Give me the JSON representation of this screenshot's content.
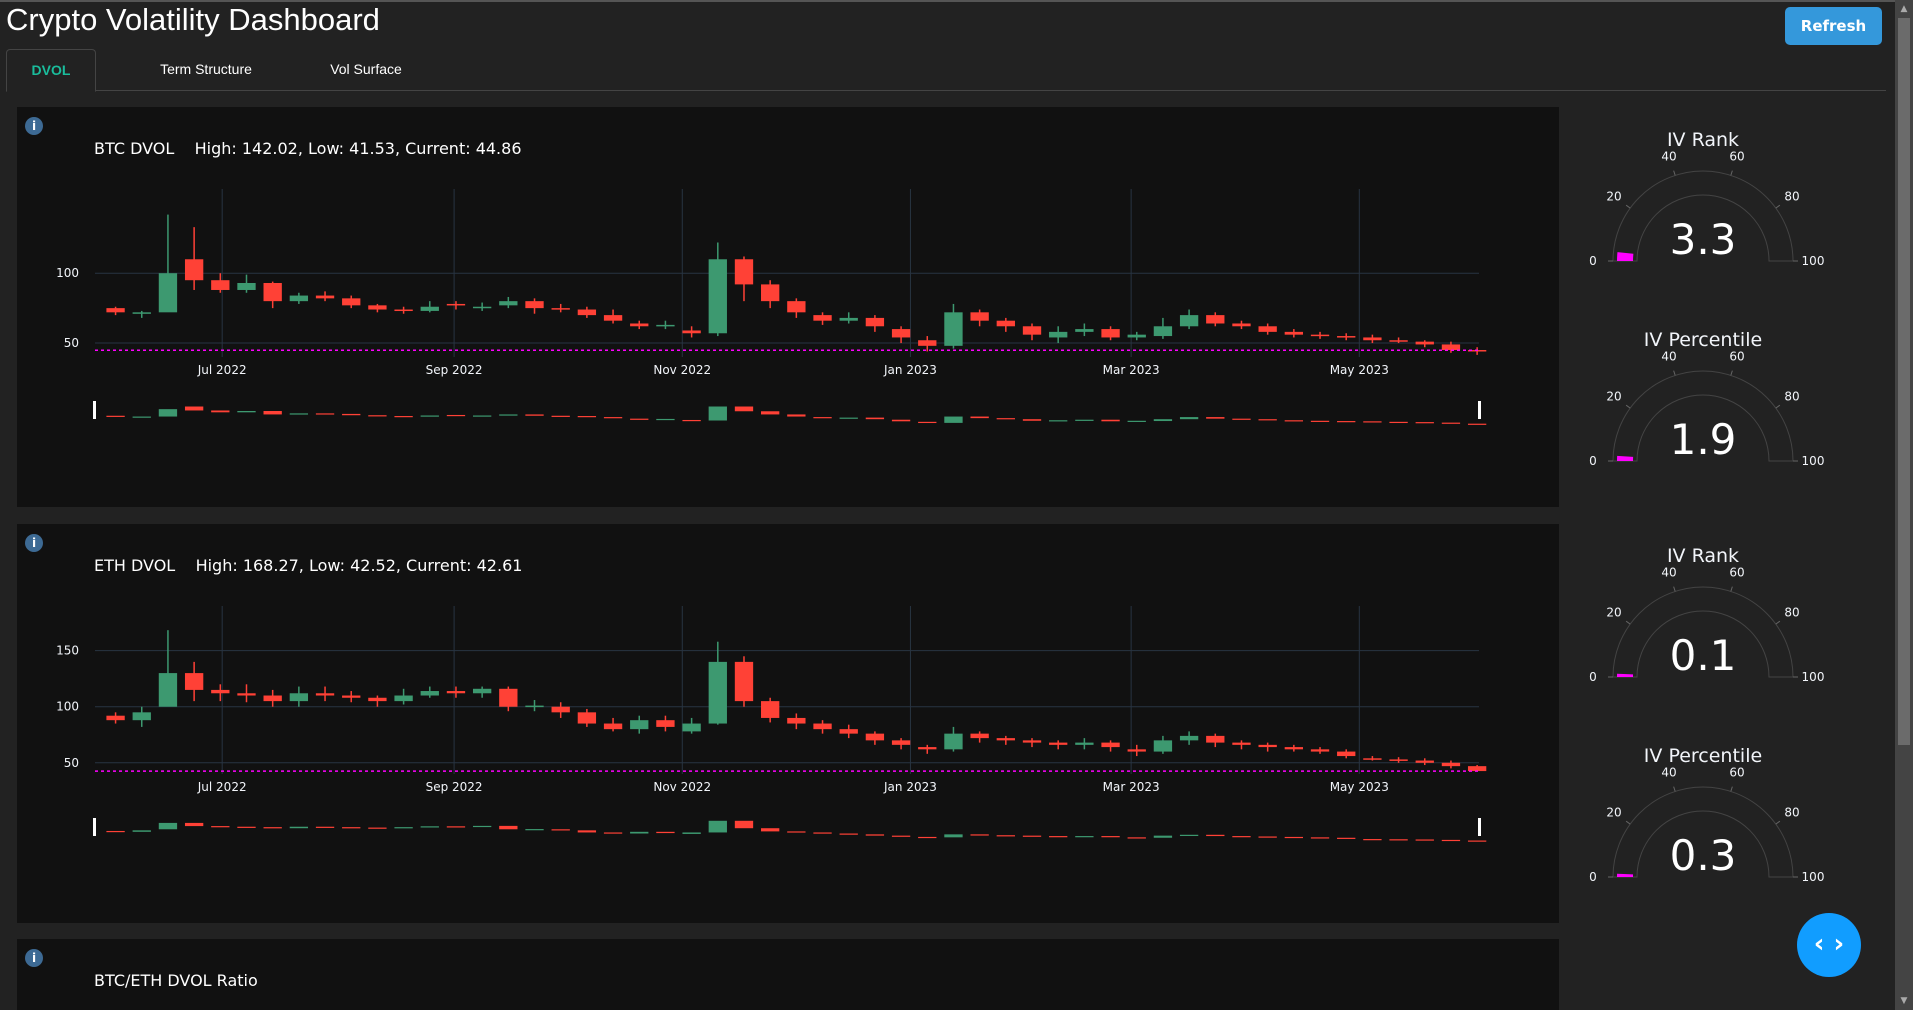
{
  "header": {
    "title": "Crypto Volatility Dashboard",
    "refresh_label": "Refresh"
  },
  "tabs": [
    {
      "label": "DVOL",
      "active": true
    },
    {
      "label": "Term Structure",
      "active": false
    },
    {
      "label": "Vol Surface",
      "active": false
    }
  ],
  "colors": {
    "increasing": "#3D9970",
    "decreasing": "#FF4136",
    "current_line": "#FF00FF",
    "gauge_bar": "#FF00FF",
    "accent": "#1abc9c",
    "button": "#3498db",
    "fab": "#119dff"
  },
  "icons": {
    "info": "info-icon",
    "fab": "code-brackets-icon"
  },
  "panels": [
    {
      "title": "BTC DVOL",
      "stats": "High: 142.02, Low: 41.53, Current: 44.86"
    },
    {
      "title": "ETH DVOL",
      "stats": "High: 168.27, Low: 42.52, Current: 42.61"
    },
    {
      "title": "BTC/ETH DVOL Ratio",
      "stats": ""
    }
  ],
  "gauges": [
    {
      "title": "IV Rank",
      "value": 3.3,
      "display": "3.3",
      "ticks": [
        "0",
        "20",
        "40",
        "60",
        "80",
        "100"
      ]
    },
    {
      "title": "IV Percentile",
      "value": 1.9,
      "display": "1.9",
      "ticks": [
        "0",
        "20",
        "40",
        "60",
        "80",
        "100"
      ]
    },
    {
      "title": "IV Rank",
      "value": 0.1,
      "display": "0.1",
      "ticks": [
        "0",
        "20",
        "40",
        "60",
        "80",
        "100"
      ]
    },
    {
      "title": "IV Percentile",
      "value": 0.3,
      "display": "0.3",
      "ticks": [
        "0",
        "20",
        "40",
        "60",
        "80",
        "100"
      ]
    }
  ],
  "chart_data": [
    {
      "type": "candlestick",
      "name": "BTC DVOL",
      "xrange": [
        "2022-05-28",
        "2023-06-02"
      ],
      "ylim": [
        40,
        146
      ],
      "yticks": [
        50,
        100
      ],
      "xticks": [
        [
          "2022-07-01",
          "Jul 2022"
        ],
        [
          "2022-09-01",
          "Sep 2022"
        ],
        [
          "2022-11-01",
          "Nov 2022"
        ],
        [
          "2023-01-01",
          "Jan 2023"
        ],
        [
          "2023-03-01",
          "Mar 2023"
        ],
        [
          "2023-05-01",
          "May 2023"
        ]
      ],
      "current": 44.86,
      "grid": true,
      "rangeslider": true,
      "candles_ohlc": [
        [
          "2022-05-30",
          75,
          76,
          70,
          72
        ],
        [
          "2022-06-06",
          72,
          73,
          68,
          72
        ],
        [
          "2022-06-13",
          72,
          142,
          88,
          100
        ],
        [
          "2022-06-20",
          110,
          133,
          88,
          95
        ],
        [
          "2022-06-27",
          95,
          100,
          86,
          88
        ],
        [
          "2022-07-04",
          88,
          99,
          86,
          93
        ],
        [
          "2022-07-11",
          93,
          94,
          75,
          80
        ],
        [
          "2022-07-18",
          80,
          86,
          78,
          84
        ],
        [
          "2022-07-25",
          84,
          87,
          80,
          82
        ],
        [
          "2022-08-01",
          82,
          84,
          75,
          77
        ],
        [
          "2022-08-08",
          77,
          78,
          72,
          74
        ],
        [
          "2022-08-15",
          74,
          76,
          71,
          73
        ],
        [
          "2022-08-22",
          73,
          80,
          72,
          76
        ],
        [
          "2022-08-29",
          78,
          80,
          74,
          77
        ],
        [
          "2022-09-05",
          75,
          79,
          73,
          76
        ],
        [
          "2022-09-12",
          77,
          83,
          75,
          80
        ],
        [
          "2022-09-19",
          80,
          82,
          71,
          75
        ],
        [
          "2022-09-26",
          75,
          78,
          72,
          74
        ],
        [
          "2022-10-03",
          74,
          76,
          68,
          70
        ],
        [
          "2022-10-10",
          70,
          74,
          64,
          66
        ],
        [
          "2022-10-17",
          64,
          66,
          60,
          62
        ],
        [
          "2022-10-24",
          62,
          66,
          60,
          63
        ],
        [
          "2022-10-31",
          59,
          62,
          54,
          57
        ],
        [
          "2022-11-07",
          57,
          122,
          55,
          110
        ],
        [
          "2022-11-14",
          110,
          112,
          80,
          92
        ],
        [
          "2022-11-21",
          92,
          95,
          75,
          80
        ],
        [
          "2022-11-28",
          80,
          82,
          68,
          72
        ],
        [
          "2022-12-05",
          70,
          72,
          63,
          66
        ],
        [
          "2022-12-12",
          66,
          72,
          64,
          68
        ],
        [
          "2022-12-19",
          68,
          70,
          58,
          62
        ],
        [
          "2022-12-26",
          60,
          62,
          50,
          54
        ],
        [
          "2023-01-02",
          52,
          55,
          44,
          48
        ],
        [
          "2023-01-09",
          48,
          78,
          46,
          72
        ],
        [
          "2023-01-16",
          72,
          74,
          62,
          66
        ],
        [
          "2023-01-23",
          66,
          68,
          58,
          62
        ],
        [
          "2023-01-30",
          62,
          64,
          52,
          56
        ],
        [
          "2023-02-06",
          54,
          62,
          50,
          58
        ],
        [
          "2023-02-13",
          58,
          64,
          55,
          60
        ],
        [
          "2023-02-20",
          60,
          62,
          52,
          54
        ],
        [
          "2023-02-27",
          54,
          58,
          52,
          56
        ],
        [
          "2023-03-06",
          55,
          68,
          53,
          62
        ],
        [
          "2023-03-13",
          62,
          74,
          60,
          70
        ],
        [
          "2023-03-20",
          70,
          72,
          62,
          64
        ],
        [
          "2023-03-27",
          64,
          66,
          60,
          62
        ],
        [
          "2023-04-03",
          62,
          64,
          56,
          58
        ],
        [
          "2023-04-10",
          58,
          60,
          54,
          56
        ],
        [
          "2023-04-17",
          56,
          58,
          53,
          55
        ],
        [
          "2023-04-24",
          55,
          57,
          52,
          54
        ],
        [
          "2023-05-01",
          54,
          56,
          50,
          52
        ],
        [
          "2023-05-08",
          52,
          54,
          50,
          51
        ],
        [
          "2023-05-15",
          51,
          52,
          47,
          49
        ],
        [
          "2023-05-22",
          49,
          51,
          43,
          45
        ],
        [
          "2023-05-29",
          45,
          47,
          41.53,
          44.86
        ]
      ]
    },
    {
      "type": "candlestick",
      "name": "ETH DVOL",
      "xrange": [
        "2022-05-28",
        "2023-06-02"
      ],
      "ylim": [
        40,
        172
      ],
      "yticks": [
        50,
        100,
        150
      ],
      "xticks": [
        [
          "2022-07-01",
          "Jul 2022"
        ],
        [
          "2022-09-01",
          "Sep 2022"
        ],
        [
          "2022-11-01",
          "Nov 2022"
        ],
        [
          "2023-01-01",
          "Jan 2023"
        ],
        [
          "2023-03-01",
          "Mar 2023"
        ],
        [
          "2023-05-01",
          "May 2023"
        ]
      ],
      "current": 42.61,
      "grid": true,
      "rangeslider": true,
      "candles_ohlc": [
        [
          "2022-05-30",
          92,
          95,
          85,
          88
        ],
        [
          "2022-06-06",
          88,
          100,
          82,
          95
        ],
        [
          "2022-06-13",
          100,
          168.27,
          105,
          130
        ],
        [
          "2022-06-20",
          130,
          140,
          105,
          115
        ],
        [
          "2022-06-27",
          115,
          120,
          105,
          112
        ],
        [
          "2022-07-04",
          112,
          120,
          104,
          110
        ],
        [
          "2022-07-11",
          110,
          115,
          100,
          105
        ],
        [
          "2022-07-18",
          105,
          118,
          100,
          112
        ],
        [
          "2022-07-25",
          112,
          118,
          105,
          110
        ],
        [
          "2022-08-01",
          110,
          114,
          104,
          108
        ],
        [
          "2022-08-08",
          108,
          110,
          100,
          105
        ],
        [
          "2022-08-15",
          105,
          116,
          102,
          110
        ],
        [
          "2022-08-22",
          110,
          118,
          108,
          114
        ],
        [
          "2022-08-29",
          114,
          118,
          108,
          112
        ],
        [
          "2022-09-05",
          112,
          118,
          108,
          116
        ],
        [
          "2022-09-12",
          116,
          118,
          96,
          100
        ],
        [
          "2022-09-19",
          100,
          106,
          96,
          101
        ],
        [
          "2022-09-26",
          100,
          104,
          90,
          95
        ],
        [
          "2022-10-03",
          95,
          98,
          82,
          85
        ],
        [
          "2022-10-10",
          85,
          90,
          78,
          80
        ],
        [
          "2022-10-17",
          80,
          92,
          76,
          88
        ],
        [
          "2022-10-24",
          88,
          92,
          78,
          82
        ],
        [
          "2022-10-31",
          78,
          90,
          76,
          85
        ],
        [
          "2022-11-07",
          85,
          158,
          84,
          140
        ],
        [
          "2022-11-14",
          140,
          145,
          100,
          105
        ],
        [
          "2022-11-21",
          105,
          108,
          86,
          90
        ],
        [
          "2022-11-28",
          90,
          94,
          80,
          85
        ],
        [
          "2022-12-05",
          85,
          88,
          76,
          80
        ],
        [
          "2022-12-12",
          80,
          84,
          72,
          76
        ],
        [
          "2022-12-19",
          76,
          78,
          66,
          70
        ],
        [
          "2022-12-26",
          70,
          72,
          62,
          66
        ],
        [
          "2023-01-02",
          64,
          66,
          58,
          62
        ],
        [
          "2023-01-09",
          62,
          82,
          60,
          76
        ],
        [
          "2023-01-16",
          76,
          78,
          68,
          72
        ],
        [
          "2023-01-23",
          72,
          74,
          66,
          70
        ],
        [
          "2023-01-30",
          70,
          72,
          64,
          68
        ],
        [
          "2023-02-06",
          68,
          70,
          62,
          66
        ],
        [
          "2023-02-13",
          66,
          72,
          62,
          68
        ],
        [
          "2023-02-20",
          68,
          70,
          60,
          64
        ],
        [
          "2023-02-27",
          62,
          66,
          56,
          60
        ],
        [
          "2023-03-06",
          60,
          74,
          58,
          70
        ],
        [
          "2023-03-13",
          70,
          78,
          66,
          74
        ],
        [
          "2023-03-20",
          74,
          76,
          64,
          68
        ],
        [
          "2023-03-27",
          68,
          70,
          62,
          66
        ],
        [
          "2023-04-03",
          66,
          68,
          60,
          64
        ],
        [
          "2023-04-10",
          64,
          66,
          60,
          62
        ],
        [
          "2023-04-17",
          62,
          64,
          58,
          60
        ],
        [
          "2023-04-24",
          60,
          62,
          54,
          56
        ],
        [
          "2023-05-01",
          54,
          56,
          52,
          53
        ],
        [
          "2023-05-08",
          53,
          55,
          50,
          52
        ],
        [
          "2023-05-15",
          52,
          54,
          48,
          50
        ],
        [
          "2023-05-22",
          50,
          52,
          45,
          47
        ],
        [
          "2023-05-29",
          47,
          48,
          42.52,
          42.61
        ]
      ]
    }
  ]
}
